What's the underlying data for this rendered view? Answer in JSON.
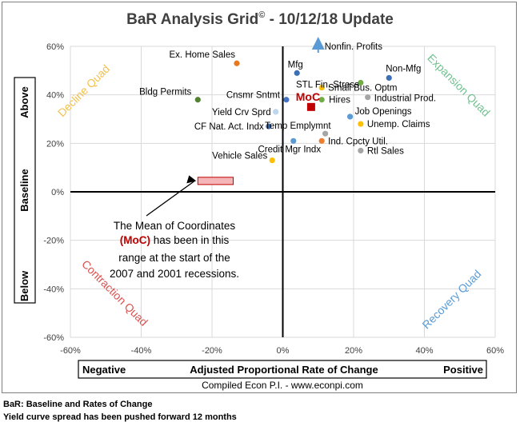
{
  "chart_data": {
    "type": "scatter",
    "title": "BaR Analysis Grid",
    "title_mark": "©",
    "title_suffix": " - 10/12/18 Update",
    "xlabel": "Adjusted Proportional Rate of Change",
    "xlabel_left": "Negative",
    "xlabel_right": "Positive",
    "ylabel": "Baseline",
    "ylabel_top": "Above",
    "ylabel_bottom": "Below",
    "source": "Compiled Econ P.I. - www.econpi.com",
    "xlim": [
      -60,
      60
    ],
    "ylim": [
      -60,
      60
    ],
    "x_ticks": [
      -60,
      -40,
      -20,
      0,
      20,
      40,
      60
    ],
    "y_ticks": [
      -60,
      -40,
      -20,
      0,
      20,
      40,
      60
    ],
    "tick_suffix": "%",
    "quadrants": {
      "top_left": "Decline Quad",
      "top_right": "Expansion Quad",
      "bottom_left": "Contraction Quad",
      "bottom_right": "Recovery Quad"
    },
    "points": [
      {
        "name": "Ex. Home Sales",
        "x": -13,
        "y": 53,
        "color": "#e8771e"
      },
      {
        "name": "Mfg",
        "x": 4,
        "y": 49,
        "color": "#3d6fb6"
      },
      {
        "name": "Nonfin. Profits",
        "x": 10,
        "y": 60,
        "color": "#5b9bd5",
        "arrow": true
      },
      {
        "name": "Non-Mfg",
        "x": 30,
        "y": 47,
        "color": "#3d6fb6"
      },
      {
        "name": "STL Fin. Stress",
        "x": 22,
        "y": 45,
        "color": "#70ad47"
      },
      {
        "name": "Small Bus. Optm",
        "x": 11,
        "y": 43,
        "color": "#ffc000"
      },
      {
        "name": "Bldg Permits",
        "x": -24,
        "y": 38,
        "color": "#548235"
      },
      {
        "name": "Cnsmr Sntmt",
        "x": 1,
        "y": 38,
        "color": "#4472c4"
      },
      {
        "name": "Industrial Prod.",
        "x": 24,
        "y": 39,
        "color": "#a5a5a5"
      },
      {
        "name": "Hires",
        "x": 11,
        "y": 38,
        "color": "#70ad47"
      },
      {
        "name": "Yield Crv Sprd",
        "x": -2,
        "y": 33,
        "color": "#bdd7ee"
      },
      {
        "name": "Job Openings",
        "x": 19,
        "y": 31,
        "color": "#5b9bd5"
      },
      {
        "name": "CF Nat. Act. Indx",
        "x": -4,
        "y": 27,
        "color": "#3d6fb6"
      },
      {
        "name": "Unemp. Claims",
        "x": 22,
        "y": 28,
        "color": "#ffc000"
      },
      {
        "name": "Temp Emplymnt",
        "x": 12,
        "y": 24,
        "color": "#a5a5a5"
      },
      {
        "name": "Ind. Cpcty Util.",
        "x": 11,
        "y": 21,
        "color": "#ed7d31"
      },
      {
        "name": "Credit Mgr Indx",
        "x": 3,
        "y": 21,
        "color": "#5b9bd5"
      },
      {
        "name": "Rtl Sales",
        "x": 22,
        "y": 17,
        "color": "#a5a5a5"
      },
      {
        "name": "Vehicle Sales",
        "x": -3,
        "y": 13,
        "color": "#ffc000"
      }
    ],
    "moc": {
      "label": "MoC",
      "x": 8,
      "y": 35,
      "color": "#c00000"
    },
    "moc_range": {
      "x": [
        -24,
        -14
      ],
      "y": [
        3,
        6
      ],
      "color": "#f4b6b6",
      "border": "#c00000"
    },
    "callout": {
      "line1": "The Mean of Coordinates",
      "moc_label": "(MoC)",
      "line2_rest": " has been in this",
      "line3": "range at the start of the",
      "line4": "2007 and 2001 recessions."
    }
  },
  "footnotes": [
    "BaR: Baseline and Rates of Change",
    "Yield curve spread has been pushed forward 12 months"
  ]
}
